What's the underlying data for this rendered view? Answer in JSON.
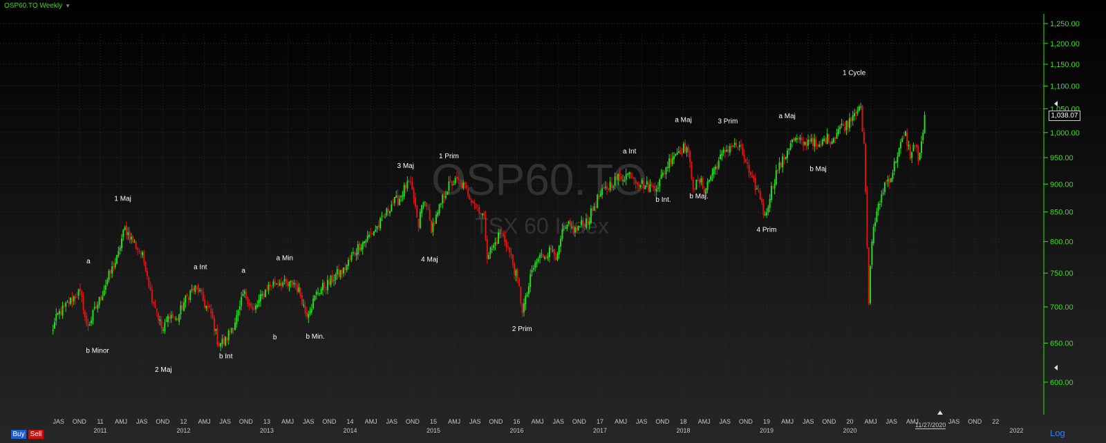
{
  "header": {
    "title": "OSP60.TO Weekly"
  },
  "watermark": {
    "symbol": "OSP60.TO",
    "name": "TSX 60 Index"
  },
  "buttons": {
    "buy": "Buy",
    "sell": "Sell",
    "log": "Log"
  },
  "date_marker": "11/27/2020",
  "last_price": "1,038.07",
  "colors": {
    "up": "#22e01a",
    "down": "#e01414",
    "axis_text": "#3ce01e",
    "grid": "#2c2c2c",
    "watermark": "#3a3a3a"
  },
  "chart_data": {
    "type": "candlestick",
    "timeframe": "Weekly",
    "y_scale": "log",
    "ylim": [
      580,
      1275
    ],
    "y_ticks": [
      "1,250.00",
      "1,200.00",
      "1,150.00",
      "1,100.00",
      "1,050.00",
      "1,000.00",
      "950.00",
      "900.00",
      "850.00",
      "800.00",
      "750.00",
      "700.00",
      "650.00",
      "600.00"
    ],
    "x_ticks": [
      "JAS",
      "OND",
      "11",
      "AMJ",
      "JAS",
      "OND",
      "12",
      "AMJ",
      "JAS",
      "OND",
      "13",
      "AMJ",
      "JAS",
      "OND",
      "14",
      "AMJ",
      "JAS",
      "OND",
      "15",
      "AMJ",
      "JAS",
      "OND",
      "16",
      "AMJ",
      "JAS",
      "OND",
      "17",
      "AMJ",
      "JAS",
      "OND",
      "18",
      "AMJ",
      "JAS",
      "OND",
      "19",
      "AMJ",
      "JAS",
      "OND",
      "20",
      "AMJ",
      "JAS",
      "AMJ",
      "JAS",
      "OND",
      "22"
    ],
    "year_labels": [
      "2011",
      "2012",
      "2013",
      "2014",
      "2015",
      "2016",
      "2017",
      "2018",
      "2019",
      "2020",
      "2022"
    ],
    "price_path": [
      [
        "2010-06-01",
        665
      ],
      [
        "2010-07-01",
        690
      ],
      [
        "2010-08-01",
        700
      ],
      [
        "2010-09-01",
        712
      ],
      [
        "2010-10-01",
        722
      ],
      [
        "2010-10-20",
        700
      ],
      [
        "2010-11-01",
        672
      ],
      [
        "2010-11-20",
        680
      ],
      [
        "2010-12-01",
        690
      ],
      [
        "2011-01-01",
        712
      ],
      [
        "2011-02-01",
        740
      ],
      [
        "2011-03-01",
        762
      ],
      [
        "2011-03-20",
        775
      ],
      [
        "2011-04-01",
        800
      ],
      [
        "2011-04-20",
        822
      ],
      [
        "2011-05-01",
        815
      ],
      [
        "2011-06-01",
        795
      ],
      [
        "2011-07-01",
        780
      ],
      [
        "2011-07-20",
        760
      ],
      [
        "2011-08-10",
        720
      ],
      [
        "2011-09-01",
        700
      ],
      [
        "2011-10-01",
        665
      ],
      [
        "2011-11-01",
        690
      ],
      [
        "2011-12-01",
        680
      ],
      [
        "2012-01-01",
        705
      ],
      [
        "2012-02-01",
        722
      ],
      [
        "2012-03-01",
        728
      ],
      [
        "2012-03-20",
        715
      ],
      [
        "2012-04-01",
        705
      ],
      [
        "2012-05-01",
        690
      ],
      [
        "2012-06-01",
        650
      ],
      [
        "2012-07-01",
        652
      ],
      [
        "2012-08-01",
        672
      ],
      [
        "2012-09-01",
        692
      ],
      [
        "2012-09-20",
        720
      ],
      [
        "2012-10-10",
        712
      ],
      [
        "2012-11-01",
        692
      ],
      [
        "2012-12-01",
        710
      ],
      [
        "2013-01-01",
        728
      ],
      [
        "2013-02-01",
        735
      ],
      [
        "2013-03-01",
        738
      ],
      [
        "2013-04-01",
        730
      ],
      [
        "2013-05-01",
        736
      ],
      [
        "2013-06-01",
        715
      ],
      [
        "2013-06-20",
        690
      ],
      [
        "2013-07-20",
        705
      ],
      [
        "2013-08-10",
        722
      ],
      [
        "2013-09-01",
        728
      ],
      [
        "2013-10-01",
        735
      ],
      [
        "2013-11-01",
        748
      ],
      [
        "2013-12-01",
        752
      ],
      [
        "2014-01-01",
        772
      ],
      [
        "2014-02-01",
        790
      ],
      [
        "2014-03-01",
        800
      ],
      [
        "2014-04-01",
        812
      ],
      [
        "2014-05-01",
        825
      ],
      [
        "2014-06-01",
        842
      ],
      [
        "2014-07-01",
        865
      ],
      [
        "2014-08-01",
        872
      ],
      [
        "2014-09-01",
        895
      ],
      [
        "2014-09-20",
        900
      ],
      [
        "2014-10-10",
        870
      ],
      [
        "2014-10-25",
        820
      ],
      [
        "2014-11-10",
        860
      ],
      [
        "2014-12-01",
        870
      ],
      [
        "2014-12-20",
        820
      ],
      [
        "2015-01-01",
        830
      ],
      [
        "2015-01-20",
        845
      ],
      [
        "2015-02-15",
        880
      ],
      [
        "2015-03-15",
        900
      ],
      [
        "2015-04-15",
        905
      ],
      [
        "2015-05-15",
        895
      ],
      [
        "2015-06-15",
        875
      ],
      [
        "2015-07-15",
        860
      ],
      [
        "2015-08-10",
        840
      ],
      [
        "2015-08-25",
        780
      ],
      [
        "2015-09-20",
        790
      ],
      [
        "2015-10-20",
        815
      ],
      [
        "2015-11-15",
        800
      ],
      [
        "2015-12-15",
        765
      ],
      [
        "2016-01-10",
        730
      ],
      [
        "2016-01-25",
        695
      ],
      [
        "2016-02-10",
        710
      ],
      [
        "2016-03-10",
        755
      ],
      [
        "2016-04-10",
        775
      ],
      [
        "2016-05-10",
        780
      ],
      [
        "2016-06-10",
        790
      ],
      [
        "2016-06-27",
        770
      ],
      [
        "2016-07-15",
        810
      ],
      [
        "2016-08-15",
        825
      ],
      [
        "2016-09-15",
        818
      ],
      [
        "2016-10-15",
        830
      ],
      [
        "2016-11-15",
        840
      ],
      [
        "2016-12-15",
        870
      ],
      [
        "2017-01-15",
        885
      ],
      [
        "2017-02-15",
        900
      ],
      [
        "2017-03-15",
        910
      ],
      [
        "2017-04-15",
        915
      ],
      [
        "2017-05-15",
        920
      ],
      [
        "2017-06-15",
        905
      ],
      [
        "2017-07-15",
        898
      ],
      [
        "2017-08-15",
        895
      ],
      [
        "2017-09-15",
        900
      ],
      [
        "2017-10-15",
        930
      ],
      [
        "2017-11-15",
        955
      ],
      [
        "2017-12-15",
        965
      ],
      [
        "2018-01-15",
        972
      ],
      [
        "2018-02-05",
        920
      ],
      [
        "2018-02-15",
        895
      ],
      [
        "2018-03-15",
        905
      ],
      [
        "2018-04-05",
        890
      ],
      [
        "2018-05-01",
        915
      ],
      [
        "2018-06-01",
        940
      ],
      [
        "2018-07-01",
        962
      ],
      [
        "2018-08-01",
        975
      ],
      [
        "2018-09-01",
        970
      ],
      [
        "2018-10-01",
        945
      ],
      [
        "2018-10-25",
        905
      ],
      [
        "2018-11-15",
        895
      ],
      [
        "2018-12-10",
        870
      ],
      [
        "2018-12-24",
        838
      ],
      [
        "2019-01-15",
        880
      ],
      [
        "2019-02-15",
        925
      ],
      [
        "2019-03-15",
        945
      ],
      [
        "2019-04-15",
        980
      ],
      [
        "2019-05-15",
        985
      ],
      [
        "2019-06-15",
        975
      ],
      [
        "2019-07-15",
        990
      ],
      [
        "2019-08-15",
        965
      ],
      [
        "2019-09-15",
        990
      ],
      [
        "2019-10-15",
        985
      ],
      [
        "2019-11-15",
        1010
      ],
      [
        "2019-12-15",
        1015
      ],
      [
        "2020-01-15",
        1040
      ],
      [
        "2020-02-15",
        1062
      ],
      [
        "2020-02-25",
        1000
      ],
      [
        "2020-03-05",
        960
      ],
      [
        "2020-03-16",
        800
      ],
      [
        "2020-03-23",
        705
      ],
      [
        "2020-04-10",
        820
      ],
      [
        "2020-05-01",
        850
      ],
      [
        "2020-06-01",
        900
      ],
      [
        "2020-07-01",
        915
      ],
      [
        "2020-08-01",
        965
      ],
      [
        "2020-09-01",
        995
      ],
      [
        "2020-09-25",
        950
      ],
      [
        "2020-10-15",
        985
      ],
      [
        "2020-10-30",
        935
      ],
      [
        "2020-11-15",
        1000
      ],
      [
        "2020-11-27",
        1038
      ]
    ],
    "annotations": [
      {
        "text": "a",
        "date": "2010-11-10",
        "price": 765
      },
      {
        "text": "b Minor",
        "date": "2010-12-20",
        "price": 637
      },
      {
        "text": "1 Maj",
        "date": "2011-04-10",
        "price": 870
      },
      {
        "text": "2 Maj",
        "date": "2011-10-05",
        "price": 613
      },
      {
        "text": "a Int",
        "date": "2012-03-15",
        "price": 756
      },
      {
        "text": "b Int",
        "date": "2012-07-05",
        "price": 630
      },
      {
        "text": "a",
        "date": "2012-09-20",
        "price": 751
      },
      {
        "text": "b",
        "date": "2013-02-05",
        "price": 655
      },
      {
        "text": "a Min",
        "date": "2013-03-20",
        "price": 770
      },
      {
        "text": "b Min.",
        "date": "2013-08-01",
        "price": 656
      },
      {
        "text": "3 Maj",
        "date": "2014-09-01",
        "price": 930
      },
      {
        "text": "4 Maj",
        "date": "2014-12-15",
        "price": 768
      },
      {
        "text": "1 Prim",
        "date": "2015-03-10",
        "price": 949
      },
      {
        "text": "2 Prim",
        "date": "2016-01-25",
        "price": 666
      },
      {
        "text": "a Int",
        "date": "2017-05-10",
        "price": 958
      },
      {
        "text": "b Int.",
        "date": "2017-10-05",
        "price": 868
      },
      {
        "text": "a Maj",
        "date": "2018-01-01",
        "price": 1022
      },
      {
        "text": "b Maj.",
        "date": "2018-03-10",
        "price": 874
      },
      {
        "text": "3 Prim",
        "date": "2018-07-15",
        "price": 1019
      },
      {
        "text": "4 Prim",
        "date": "2019-01-01",
        "price": 816
      },
      {
        "text": "a Maj",
        "date": "2019-04-01",
        "price": 1030
      },
      {
        "text": "b Maj",
        "date": "2019-08-15",
        "price": 924
      },
      {
        "text": "1 Cycle",
        "date": "2020-01-20",
        "price": 1125
      }
    ]
  }
}
